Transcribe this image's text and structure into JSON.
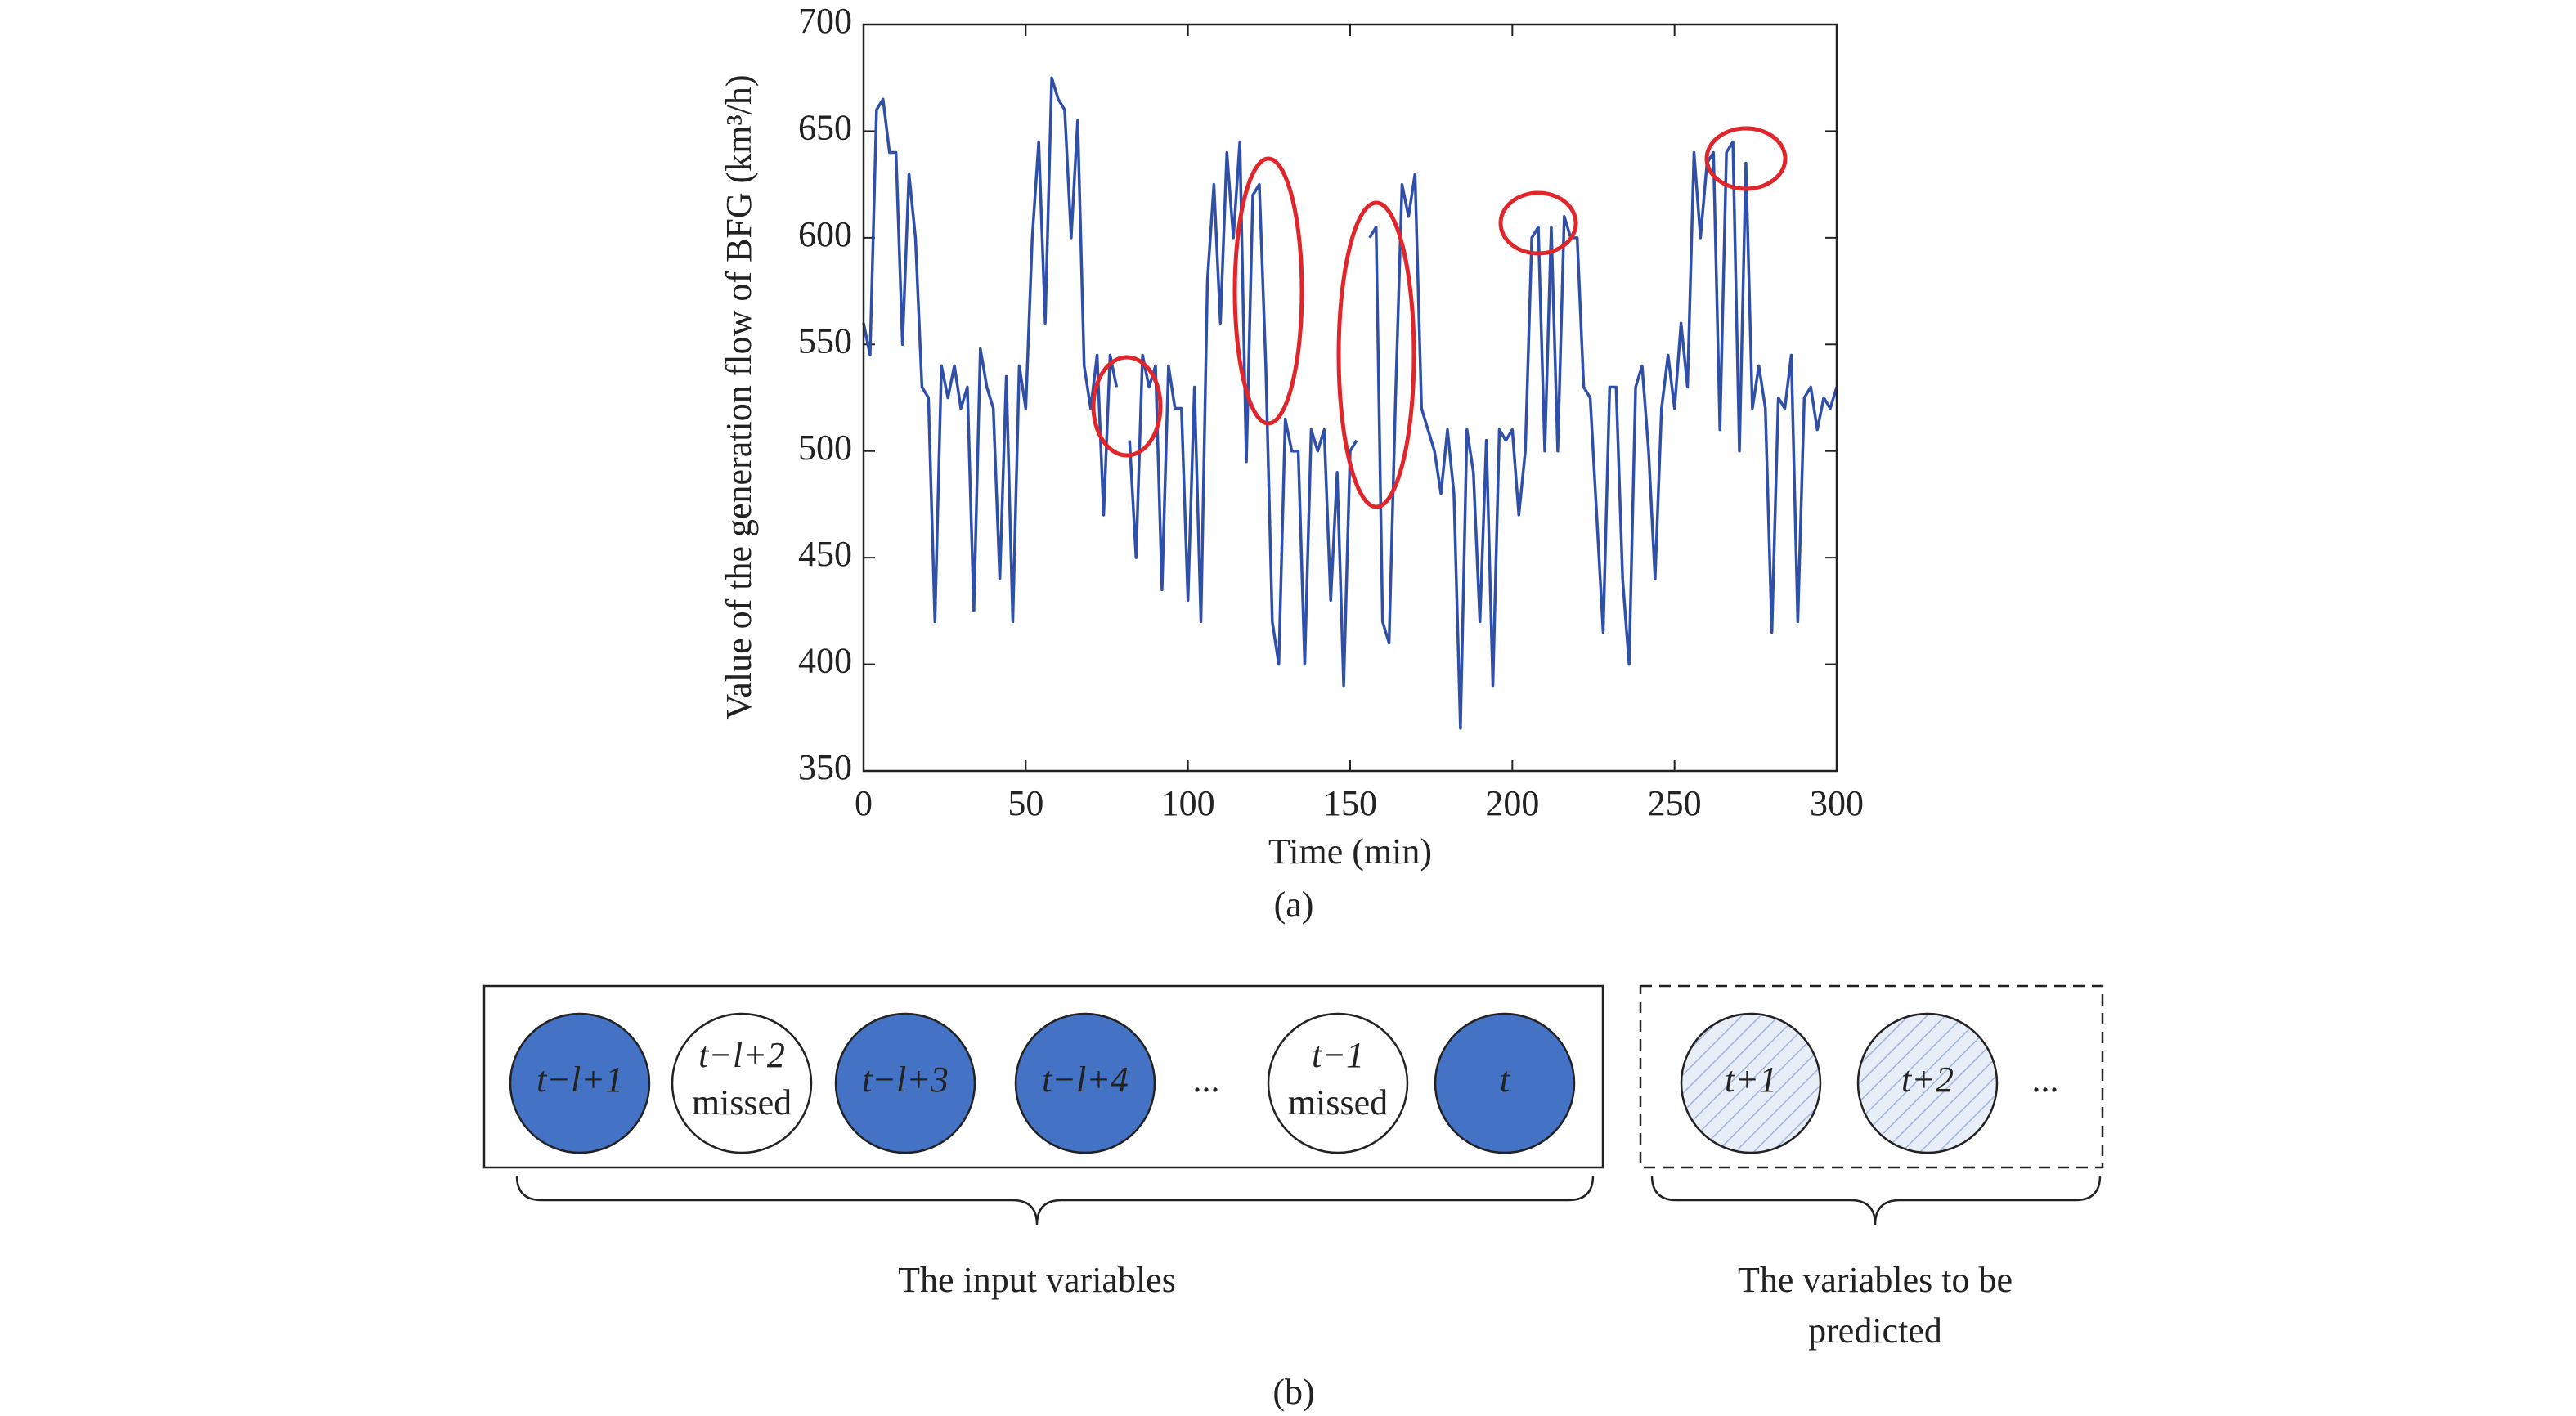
{
  "chart_data": {
    "type": "line",
    "xlabel": "Time (min)",
    "ylabel": "Value of the generation flow of BFG (km³/h)",
    "caption": "(a)",
    "color": "#2f4fa8",
    "xlim": [
      0,
      300
    ],
    "xticks": [
      0,
      50,
      100,
      150,
      200,
      250,
      300
    ],
    "ylim": [
      350,
      700
    ],
    "yticks": [
      350,
      400,
      450,
      500,
      550,
      600,
      650,
      700
    ],
    "x": [
      0,
      2,
      4,
      6,
      8,
      10,
      12,
      14,
      16,
      18,
      20,
      22,
      24,
      26,
      28,
      30,
      32,
      34,
      36,
      38,
      40,
      42,
      44,
      46,
      48,
      50,
      52,
      54,
      56,
      58,
      60,
      62,
      64,
      66,
      68,
      70,
      72,
      74,
      76,
      78,
      80,
      82,
      84,
      86,
      88,
      90,
      92,
      94,
      96,
      98,
      100,
      102,
      104,
      106,
      108,
      110,
      112,
      114,
      116,
      118,
      120,
      122,
      124,
      126,
      128,
      130,
      132,
      134,
      136,
      138,
      140,
      142,
      144,
      146,
      148,
      150,
      152,
      154,
      156,
      158,
      160,
      162,
      164,
      166,
      168,
      170,
      172,
      174,
      176,
      178,
      180,
      182,
      184,
      186,
      188,
      190,
      192,
      194,
      196,
      198,
      200,
      202,
      204,
      206,
      208,
      210,
      212,
      214,
      216,
      218,
      220,
      222,
      224,
      226,
      228,
      230,
      232,
      234,
      236,
      238,
      240,
      242,
      244,
      246,
      248,
      250,
      252,
      254,
      256,
      258,
      260,
      262,
      264,
      266,
      268,
      270,
      272,
      274,
      276,
      278,
      280,
      282,
      284,
      286,
      288,
      290,
      292,
      294,
      296,
      298,
      300
    ],
    "values": [
      560,
      545,
      660,
      665,
      640,
      640,
      550,
      630,
      600,
      530,
      525,
      420,
      540,
      525,
      540,
      520,
      530,
      425,
      548,
      530,
      520,
      440,
      535,
      420,
      540,
      520,
      600,
      645,
      560,
      675,
      665,
      660,
      600,
      655,
      540,
      520,
      545,
      470,
      545,
      530,
      null,
      505,
      450,
      545,
      530,
      540,
      435,
      540,
      520,
      520,
      430,
      530,
      420,
      580,
      625,
      560,
      640,
      600,
      645,
      495,
      620,
      625,
      540,
      420,
      400,
      515,
      500,
      500,
      400,
      510,
      500,
      510,
      430,
      490,
      390,
      500,
      505,
      null,
      600,
      605,
      420,
      410,
      525,
      625,
      610,
      630,
      520,
      510,
      500,
      480,
      510,
      480,
      370,
      510,
      490,
      420,
      505,
      390,
      510,
      505,
      510,
      470,
      500,
      600,
      605,
      500,
      605,
      500,
      610,
      600,
      600,
      530,
      525,
      470,
      415,
      530,
      530,
      440,
      400,
      530,
      540,
      500,
      440,
      520,
      545,
      520,
      560,
      530,
      640,
      600,
      635,
      640,
      510,
      640,
      645,
      500,
      635,
      520,
      540,
      520,
      415,
      525,
      520,
      545,
      420,
      525,
      530,
      510,
      525,
      520,
      530
    ]
  },
  "diagram": {
    "input_nodes": [
      "t−l+1",
      "t−l+2",
      "t−l+3",
      "t−l+4",
      "t−1",
      "t"
    ],
    "missed_label": "missed",
    "ellipsis": "...",
    "output_nodes": [
      "t+1",
      "t+2"
    ],
    "input_caption": "The input variables",
    "output_caption": [
      "The variables to be",
      "predicted"
    ],
    "caption": "(b)"
  }
}
